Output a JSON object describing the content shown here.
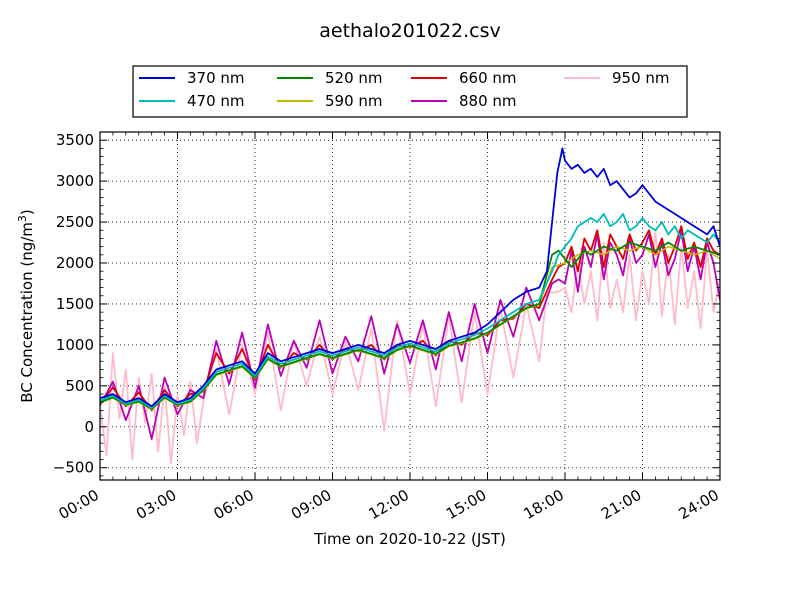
{
  "chart_data": {
    "type": "line",
    "title": "aethalo201022.csv",
    "xlabel": "Time on 2020-10-22 (JST)",
    "ylabel": "BC Concentration (ng/m",
    "ylabel_sup": "3",
    "ylabel_tail": ")",
    "x_unit": "hours",
    "xlim": [
      0,
      24
    ],
    "ylim": [
      -650,
      3600
    ],
    "x_ticks": [
      0,
      3,
      6,
      9,
      12,
      15,
      18,
      21,
      24
    ],
    "x_tick_labels": [
      "00:00",
      "03:00",
      "06:00",
      "09:00",
      "12:00",
      "15:00",
      "18:00",
      "21:00",
      "24:00"
    ],
    "y_ticks": [
      -500,
      0,
      500,
      1000,
      1500,
      2000,
      2500,
      3000,
      3500
    ],
    "y_tick_labels": [
      "−500",
      "0",
      "500",
      "1000",
      "1500",
      "2000",
      "2500",
      "3000",
      "3500"
    ],
    "grid": true,
    "legend_placement": "top-center",
    "series": [
      {
        "name": "370 nm",
        "color": "#0000dd",
        "stroke_width": 1.8,
        "x": [
          0,
          0.5,
          1,
          1.5,
          2,
          2.5,
          3,
          3.5,
          4,
          4.5,
          5,
          5.5,
          6,
          6.5,
          7,
          7.5,
          8,
          8.5,
          9,
          9.5,
          10,
          10.5,
          11,
          11.5,
          12,
          12.5,
          13,
          13.5,
          14,
          14.5,
          15,
          15.5,
          16,
          16.5,
          17,
          17.3,
          17.5,
          17.7,
          17.9,
          18,
          18.25,
          18.5,
          18.75,
          19,
          19.25,
          19.5,
          19.75,
          20,
          20.25,
          20.5,
          20.75,
          21,
          21.25,
          21.5,
          21.75,
          22,
          22.25,
          22.5,
          22.75,
          23,
          23.25,
          23.5,
          23.75,
          24
        ],
        "y": [
          350,
          400,
          300,
          350,
          250,
          400,
          300,
          350,
          500,
          700,
          750,
          800,
          650,
          900,
          800,
          850,
          900,
          950,
          900,
          950,
          1000,
          950,
          900,
          1000,
          1050,
          1000,
          950,
          1050,
          1100,
          1150,
          1250,
          1400,
          1550,
          1650,
          1700,
          1900,
          2500,
          3100,
          3400,
          3250,
          3150,
          3200,
          3100,
          3150,
          3050,
          3150,
          2950,
          3000,
          2900,
          2800,
          2850,
          2950,
          2850,
          2750,
          2700,
          2650,
          2600,
          2550,
          2500,
          2450,
          2400,
          2350,
          2450,
          2200
        ]
      },
      {
        "name": "470 nm",
        "color": "#00bbbb",
        "stroke_width": 1.8,
        "x": [
          0,
          0.5,
          1,
          1.5,
          2,
          2.5,
          3,
          3.5,
          4,
          4.5,
          5,
          5.5,
          6,
          6.5,
          7,
          7.5,
          8,
          8.5,
          9,
          9.5,
          10,
          10.5,
          11,
          11.5,
          12,
          12.5,
          13,
          13.5,
          14,
          14.5,
          15,
          15.5,
          16,
          16.5,
          17,
          17.5,
          17.75,
          18,
          18.25,
          18.5,
          18.75,
          19,
          19.25,
          19.5,
          19.75,
          20,
          20.25,
          20.5,
          20.75,
          21,
          21.25,
          21.5,
          21.75,
          22,
          22.25,
          22.5,
          22.75,
          23,
          23.25,
          23.5,
          23.75,
          24
        ],
        "y": [
          320,
          380,
          280,
          330,
          230,
          380,
          280,
          330,
          470,
          670,
          720,
          770,
          620,
          860,
          770,
          820,
          870,
          920,
          870,
          920,
          970,
          920,
          870,
          970,
          1020,
          970,
          920,
          1020,
          1070,
          1120,
          1200,
          1300,
          1400,
          1500,
          1550,
          1900,
          2100,
          2200,
          2300,
          2450,
          2500,
          2550,
          2500,
          2600,
          2450,
          2500,
          2600,
          2400,
          2450,
          2550,
          2450,
          2400,
          2500,
          2350,
          2450,
          2300,
          2400,
          2350,
          2300,
          2250,
          2350,
          2250
        ]
      },
      {
        "name": "520 nm",
        "color": "#008800",
        "stroke_width": 1.8,
        "x": [
          0,
          0.5,
          1,
          1.5,
          2,
          2.5,
          3,
          3.5,
          4,
          4.5,
          5,
          5.5,
          6,
          6.5,
          7,
          7.5,
          8,
          8.5,
          9,
          9.5,
          10,
          10.5,
          11,
          11.5,
          12,
          12.5,
          13,
          13.5,
          14,
          14.5,
          15,
          15.5,
          16,
          16.5,
          17,
          17.5,
          17.75,
          18,
          18.25,
          18.5,
          18.75,
          19,
          19.5,
          20,
          20.5,
          21,
          21.5,
          22,
          22.5,
          23,
          23.5,
          24
        ],
        "y": [
          300,
          360,
          270,
          310,
          220,
          360,
          270,
          310,
          450,
          640,
          690,
          740,
          600,
          830,
          740,
          790,
          840,
          890,
          840,
          890,
          940,
          890,
          840,
          940,
          990,
          940,
          890,
          990,
          1030,
          1080,
          1150,
          1250,
          1350,
          1450,
          1500,
          2100,
          2150,
          2050,
          1950,
          2050,
          2150,
          2100,
          2200,
          2150,
          2250,
          2200,
          2150,
          2250,
          2150,
          2200,
          2150,
          2100
        ]
      },
      {
        "name": "590 nm",
        "color": "#bbbb00",
        "stroke_width": 1.5,
        "x": [
          0,
          0.5,
          1,
          1.5,
          2,
          2.5,
          3,
          3.5,
          4,
          4.5,
          5,
          5.5,
          6,
          6.5,
          7,
          7.5,
          8,
          8.5,
          9,
          9.5,
          10,
          10.5,
          11,
          11.5,
          12,
          12.5,
          13,
          13.5,
          14,
          14.5,
          15,
          15.5,
          16,
          16.5,
          17,
          17.5,
          18,
          18.5,
          19,
          19.5,
          20,
          20.5,
          21,
          21.5,
          22,
          22.5,
          23,
          23.5,
          24
        ],
        "y": [
          290,
          350,
          260,
          300,
          210,
          350,
          260,
          300,
          440,
          630,
          680,
          730,
          590,
          820,
          730,
          780,
          830,
          880,
          830,
          880,
          930,
          880,
          830,
          930,
          980,
          930,
          880,
          980,
          1020,
          1070,
          1140,
          1240,
          1340,
          1440,
          1490,
          1950,
          2000,
          2100,
          2150,
          2100,
          2200,
          2150,
          2200,
          2100,
          2200,
          2150,
          2100,
          2150,
          2050
        ]
      },
      {
        "name": "660 nm",
        "color": "#dd0000",
        "stroke_width": 1.8,
        "x": [
          0,
          0.5,
          1,
          1.5,
          2,
          2.5,
          3,
          3.5,
          4,
          4.5,
          5,
          5.5,
          6,
          6.5,
          7,
          7.5,
          8,
          8.5,
          9,
          9.5,
          10,
          10.5,
          11,
          11.5,
          12,
          12.5,
          13,
          13.5,
          14,
          14.5,
          15,
          15.5,
          16,
          16.5,
          17,
          17.5,
          17.75,
          18,
          18.25,
          18.5,
          18.75,
          19,
          19.25,
          19.5,
          19.75,
          20,
          20.25,
          20.5,
          20.75,
          21,
          21.25,
          21.5,
          21.75,
          22,
          22.25,
          22.5,
          22.75,
          23,
          23.25,
          23.5,
          23.75,
          24
        ],
        "y": [
          280,
          480,
          250,
          420,
          200,
          450,
          250,
          400,
          430,
          900,
          650,
          950,
          580,
          1000,
          720,
          900,
          820,
          1000,
          820,
          950,
          920,
          1000,
          820,
          1000,
          970,
          1050,
          870,
          1050,
          1000,
          1150,
          1120,
          1300,
          1320,
          1500,
          1450,
          1800,
          1950,
          2000,
          2200,
          1900,
          2300,
          2150,
          2400,
          1950,
          2350,
          2200,
          2050,
          2350,
          2150,
          2250,
          2400,
          2100,
          2300,
          2000,
          2200,
          2450,
          2050,
          2250,
          1950,
          2300,
          2150,
          2100
        ]
      },
      {
        "name": "880 nm",
        "color": "#bb00bb",
        "stroke_width": 1.8,
        "x": [
          0,
          0.5,
          1,
          1.5,
          2,
          2.5,
          3,
          3.5,
          4,
          4.5,
          5,
          5.5,
          6,
          6.5,
          7,
          7.5,
          8,
          8.5,
          9,
          9.5,
          10,
          10.5,
          11,
          11.5,
          12,
          12.5,
          13,
          13.5,
          14,
          14.5,
          15,
          15.5,
          16,
          16.5,
          17,
          17.5,
          17.75,
          18,
          18.25,
          18.5,
          18.75,
          19,
          19.25,
          19.5,
          19.75,
          20,
          20.25,
          20.5,
          20.75,
          21,
          21.25,
          21.5,
          21.75,
          22,
          22.25,
          22.5,
          22.75,
          23,
          23.25,
          23.5,
          23.75,
          24
        ],
        "y": [
          260,
          550,
          80,
          500,
          -150,
          600,
          150,
          450,
          350,
          1050,
          520,
          1150,
          480,
          1250,
          620,
          1050,
          720,
          1300,
          650,
          1100,
          800,
          1350,
          650,
          1250,
          780,
          1300,
          700,
          1400,
          800,
          1500,
          900,
          1550,
          1100,
          1700,
          1300,
          1750,
          1800,
          1750,
          2150,
          1650,
          2200,
          1950,
          2350,
          1800,
          2250,
          2100,
          1850,
          2300,
          2000,
          2100,
          2350,
          1950,
          2250,
          1850,
          2050,
          2400,
          1900,
          2200,
          1800,
          2250,
          2000,
          1550
        ]
      },
      {
        "name": "950 nm",
        "color": "#ffbbc8",
        "stroke_width": 1.8,
        "x": [
          0,
          0.25,
          0.5,
          0.75,
          1,
          1.25,
          1.5,
          1.75,
          2,
          2.25,
          2.5,
          2.75,
          3,
          3.25,
          3.5,
          3.75,
          4,
          4.5,
          5,
          5.5,
          6,
          6.5,
          7,
          7.5,
          8,
          8.5,
          9,
          9.5,
          10,
          10.5,
          11,
          11.5,
          12,
          12.5,
          13,
          13.5,
          14,
          14.5,
          15,
          15.5,
          16,
          16.5,
          17,
          17.3,
          17.5,
          17.75,
          18,
          18.25,
          18.5,
          18.75,
          19,
          19.25,
          19.5,
          19.75,
          20,
          20.25,
          20.5,
          20.75,
          21,
          21.25,
          21.5,
          21.75,
          22,
          22.25,
          22.5,
          22.75,
          23,
          23.25,
          23.5,
          23.75,
          24
        ],
        "y": [
          250,
          -350,
          900,
          100,
          700,
          -400,
          600,
          50,
          650,
          -300,
          500,
          -450,
          400,
          -100,
          550,
          -200,
          300,
          950,
          150,
          1000,
          400,
          1150,
          200,
          1050,
          500,
          1100,
          400,
          1050,
          450,
          1200,
          -50,
          1300,
          400,
          1250,
          250,
          1350,
          300,
          1400,
          400,
          1450,
          600,
          1500,
          800,
          1640,
          1640,
          1650,
          1700,
          1400,
          2000,
          1500,
          1900,
          1300,
          2250,
          1450,
          1800,
          1400,
          2100,
          1300,
          1900,
          1500,
          2400,
          1350,
          2100,
          1250,
          2200,
          1450,
          1900,
          1200,
          2150,
          1400,
          1800
        ]
      }
    ]
  }
}
